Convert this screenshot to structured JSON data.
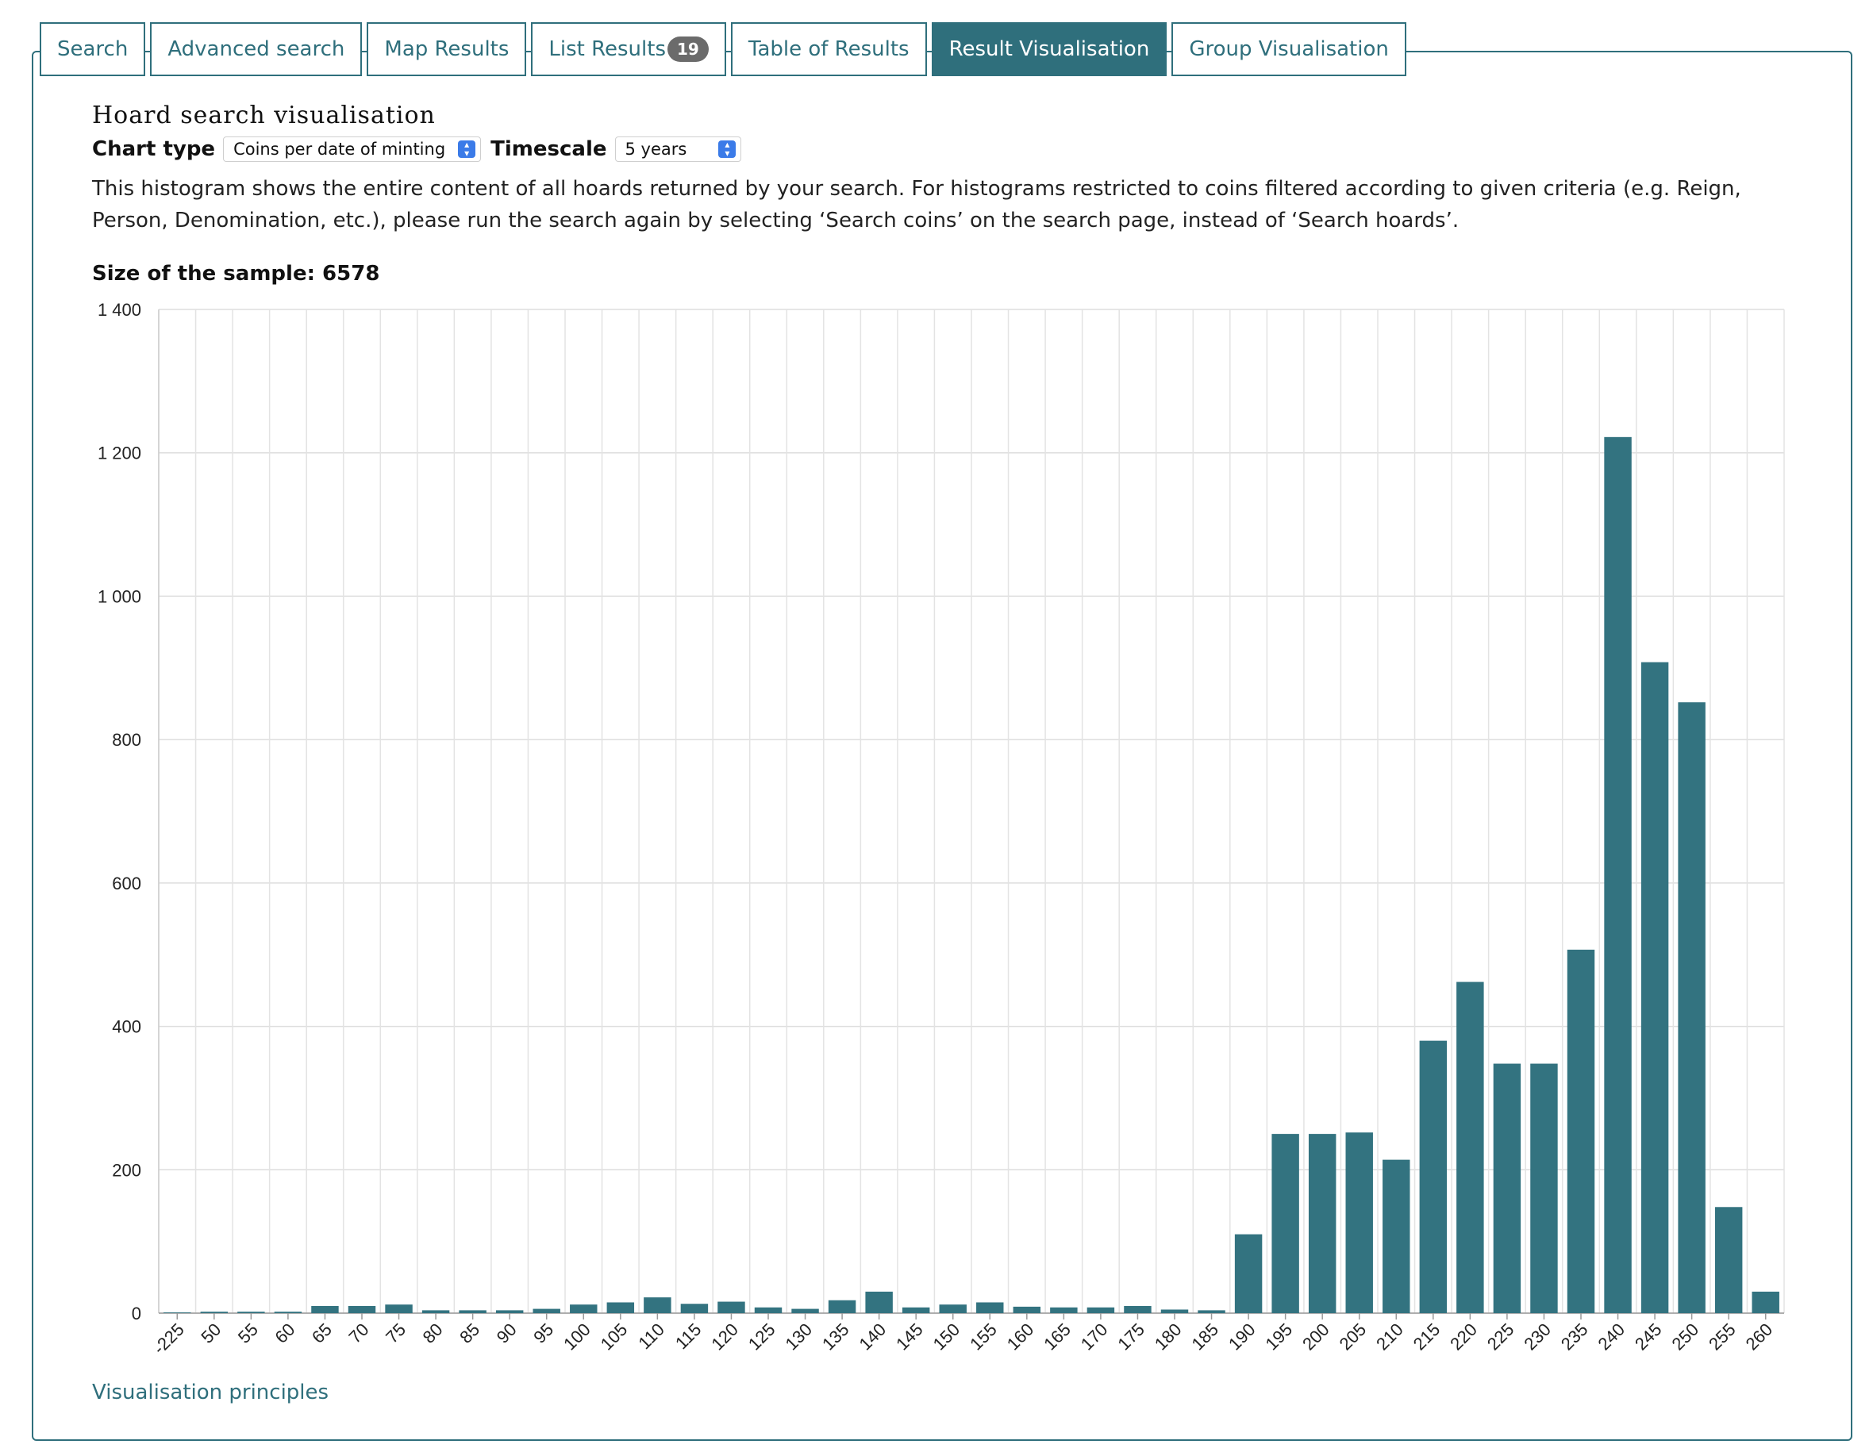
{
  "tabs": [
    {
      "label": "Search",
      "active": false
    },
    {
      "label": "Advanced search",
      "active": false
    },
    {
      "label": "Map Results",
      "active": false
    },
    {
      "label": "List Results",
      "badge": "19",
      "active": false
    },
    {
      "label": "Table of Results",
      "active": false
    },
    {
      "label": "Result Visualisation",
      "active": true
    },
    {
      "label": "Group Visualisation",
      "active": false
    }
  ],
  "page": {
    "title": "Hoard search visualisation",
    "chart_type_label": "Chart type",
    "chart_type_value": "Coins per date of minting",
    "timescale_label": "Timescale",
    "timescale_value": "5 years",
    "description": "This histogram shows the entire content of all hoards returned by your search. For histograms restricted to coins filtered according to given criteria (e.g. Reign, Person, Denomination, etc.), please run the search again by selecting ‘Search coins’ on the search page, instead of ‘Search hoards’.",
    "sample_label": "Size of the sample:",
    "sample_value": "6578",
    "principles_link": "Visualisation principles"
  },
  "colors": {
    "accent": "#2f6f7c",
    "bar": "#337380"
  },
  "chart_data": {
    "type": "bar",
    "title": "",
    "xlabel": "",
    "ylabel": "",
    "ylim": [
      0,
      1400
    ],
    "yticks": [
      0,
      200,
      400,
      600,
      800,
      1000,
      1200,
      1400
    ],
    "ytick_labels": [
      "0",
      "200",
      "400",
      "600",
      "800",
      "1 000",
      "1 200",
      "1 400"
    ],
    "grid": true,
    "categories": [
      "-225",
      "50",
      "55",
      "60",
      "65",
      "70",
      "75",
      "80",
      "85",
      "90",
      "95",
      "100",
      "105",
      "110",
      "115",
      "120",
      "125",
      "130",
      "135",
      "140",
      "145",
      "150",
      "155",
      "160",
      "165",
      "170",
      "175",
      "180",
      "185",
      "190",
      "195",
      "200",
      "205",
      "210",
      "215",
      "220",
      "225",
      "230",
      "235",
      "240",
      "245",
      "250",
      "255",
      "260"
    ],
    "values": [
      1,
      2,
      2,
      2,
      10,
      10,
      12,
      4,
      4,
      4,
      6,
      12,
      15,
      22,
      13,
      16,
      8,
      6,
      18,
      30,
      8,
      12,
      15,
      9,
      8,
      8,
      10,
      5,
      4,
      110,
      250,
      250,
      252,
      214,
      380,
      462,
      348,
      348,
      507,
      1222,
      908,
      852,
      148,
      30
    ]
  }
}
